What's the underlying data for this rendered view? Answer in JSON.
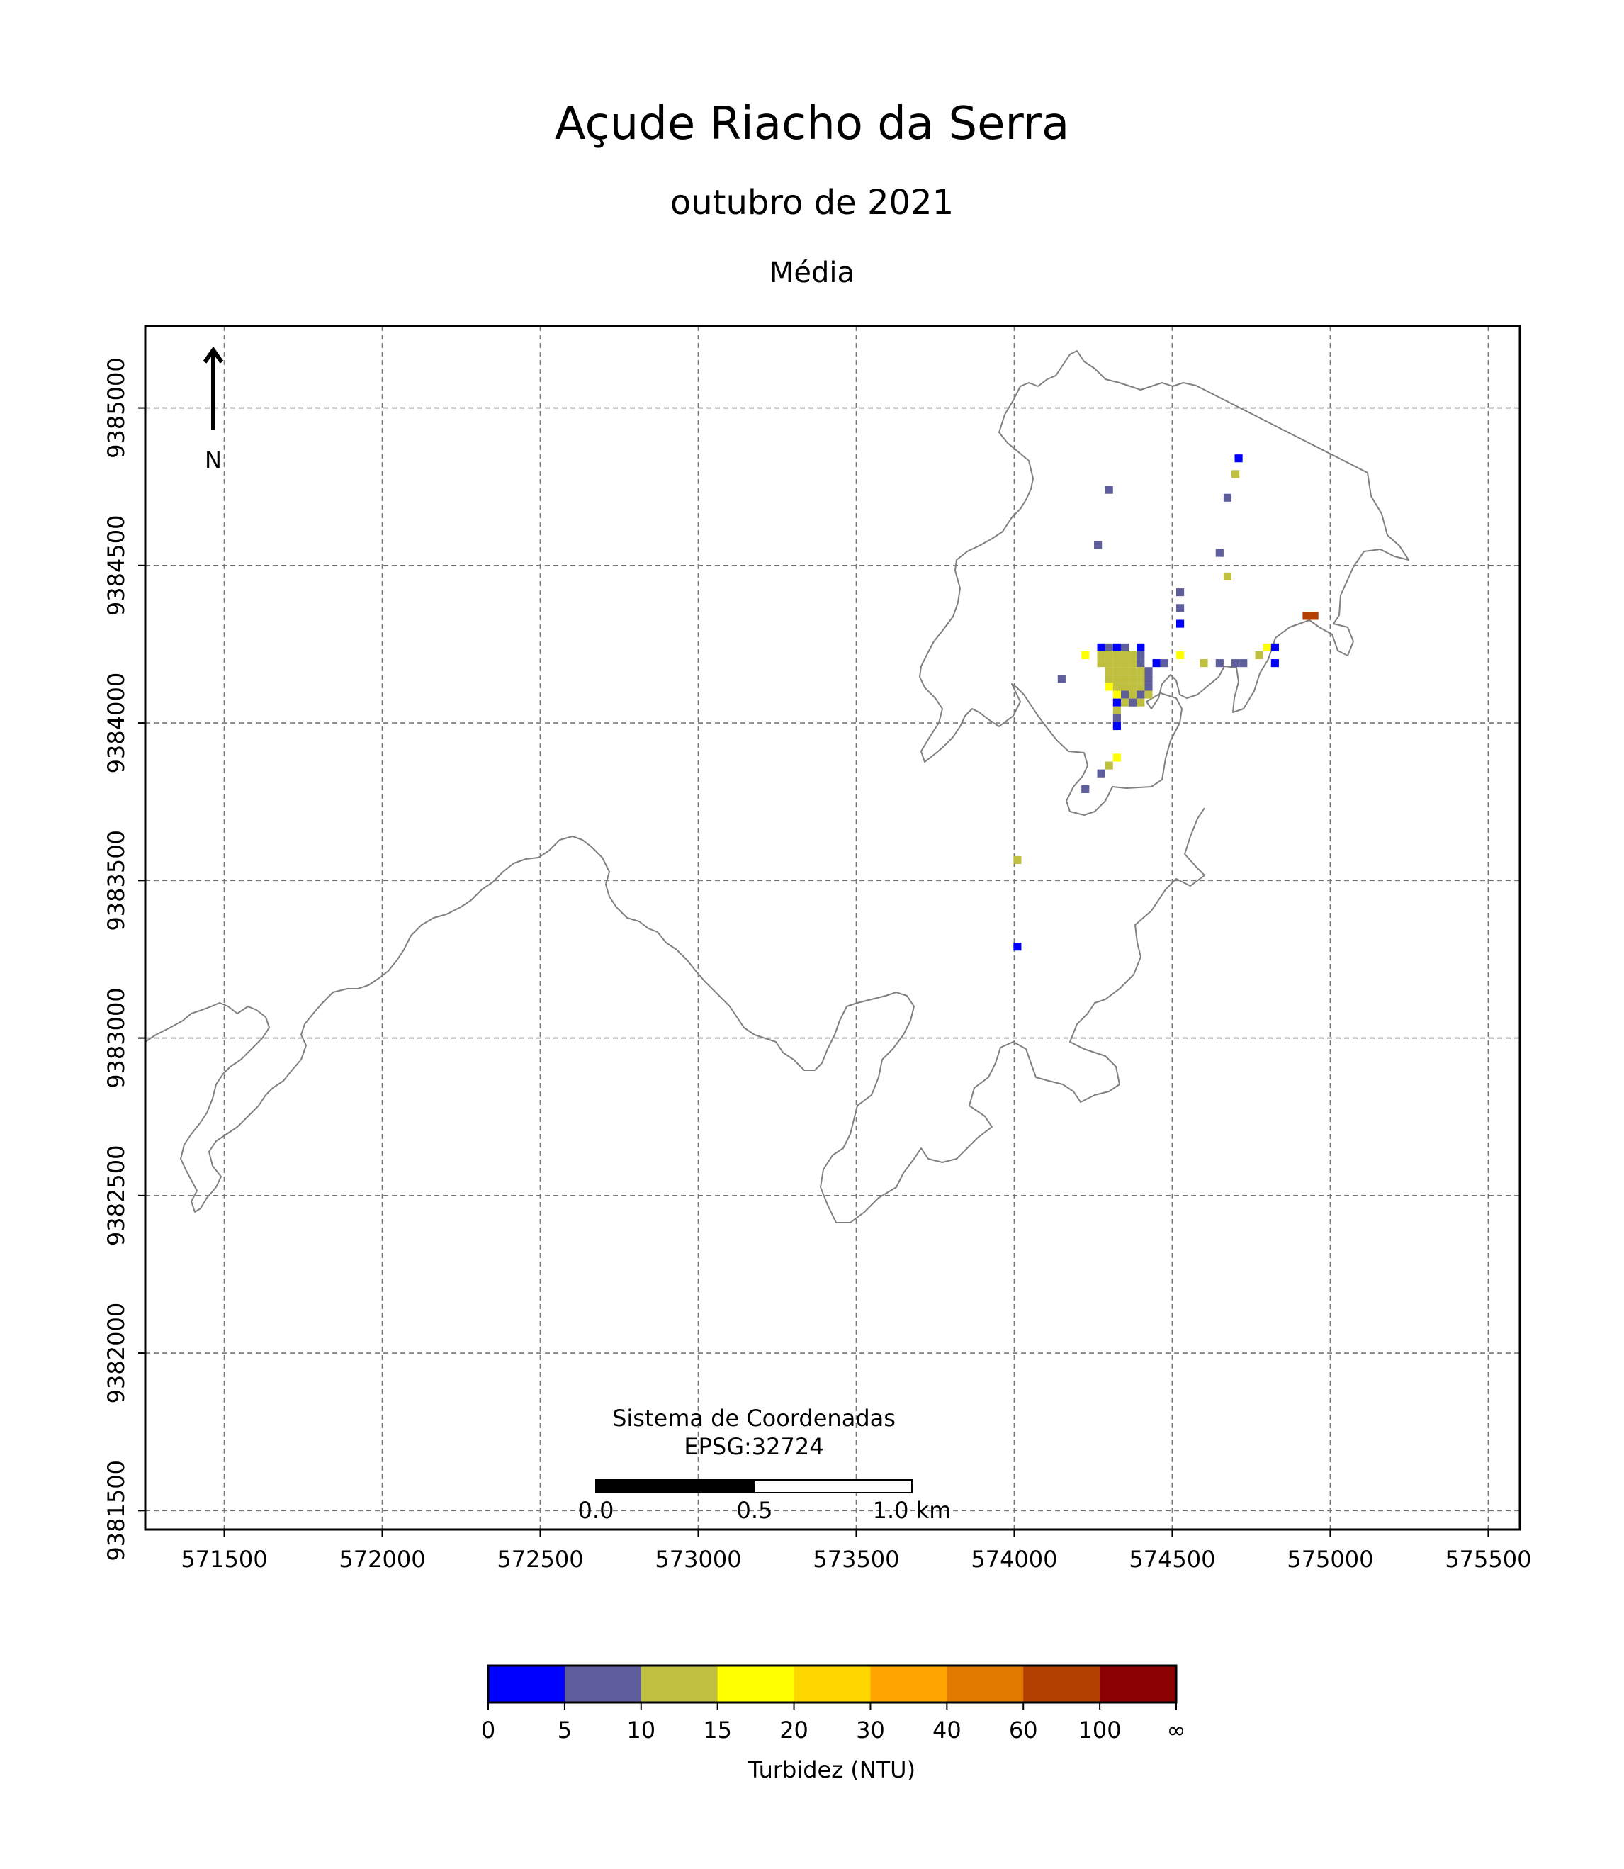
{
  "title": "Açude Riacho da Serra",
  "subtitle": "outubro de 2021",
  "statistic": "Média",
  "north_arrow": {
    "label": "N",
    "icon": "north-arrow-icon"
  },
  "x_ticks": [
    "571500",
    "572000",
    "572500",
    "573000",
    "573500",
    "574000",
    "574500",
    "575000",
    "575500"
  ],
  "y_ticks": [
    "9385000",
    "9384500",
    "9384000",
    "9383500",
    "9383000",
    "9382500",
    "9382000",
    "9381500"
  ],
  "coordinate_system": {
    "line1": "Sistema de Coordenadas",
    "line2": "EPSG:32724"
  },
  "scale_bar": {
    "labels": [
      "0.0",
      "0.5",
      "1.0 km"
    ]
  },
  "colorbar": {
    "label": "Turbidez (NTU)",
    "tick_labels": [
      "0",
      "5",
      "10",
      "15",
      "20",
      "30",
      "40",
      "60",
      "100",
      "∞"
    ],
    "colors": [
      "#0000ff",
      "#5e5e9c",
      "#bfbf40",
      "#ffff00",
      "#ffd700",
      "#ffa500",
      "#e07b00",
      "#b34000",
      "#8b0000"
    ]
  },
  "chart_data": {
    "type": "heatmap",
    "title": "Açude Riacho da Serra",
    "subtitle": "outubro de 2021",
    "statistic": "Média",
    "crs": "EPSG:32724",
    "xlim": [
      571250,
      575600
    ],
    "ylim": [
      9381440,
      9385260
    ],
    "grid": true,
    "value_label": "Turbidez (NTU)",
    "class_bounds": [
      0,
      5,
      10,
      15,
      20,
      30,
      40,
      60,
      100,
      "∞"
    ],
    "pixels": [
      {
        "x": 574275,
        "y": 9384215,
        "v": 12
      },
      {
        "x": 574300,
        "y": 9384215,
        "v": 12
      },
      {
        "x": 574325,
        "y": 9384215,
        "v": 12
      },
      {
        "x": 574350,
        "y": 9384215,
        "v": 11
      },
      {
        "x": 574375,
        "y": 9384215,
        "v": 12
      },
      {
        "x": 574400,
        "y": 9384215,
        "v": 7
      },
      {
        "x": 574275,
        "y": 9384190,
        "v": 12
      },
      {
        "x": 574300,
        "y": 9384190,
        "v": 12
      },
      {
        "x": 574325,
        "y": 9384190,
        "v": 12
      },
      {
        "x": 574350,
        "y": 9384190,
        "v": 12
      },
      {
        "x": 574375,
        "y": 9384190,
        "v": 12
      },
      {
        "x": 574400,
        "y": 9384190,
        "v": 7
      },
      {
        "x": 574300,
        "y": 9384165,
        "v": 12
      },
      {
        "x": 574325,
        "y": 9384165,
        "v": 12
      },
      {
        "x": 574350,
        "y": 9384165,
        "v": 12
      },
      {
        "x": 574375,
        "y": 9384165,
        "v": 12
      },
      {
        "x": 574400,
        "y": 9384165,
        "v": 12
      },
      {
        "x": 574425,
        "y": 9384165,
        "v": 7
      },
      {
        "x": 574300,
        "y": 9384140,
        "v": 12
      },
      {
        "x": 574325,
        "y": 9384140,
        "v": 12
      },
      {
        "x": 574350,
        "y": 9384140,
        "v": 12
      },
      {
        "x": 574375,
        "y": 9384140,
        "v": 12
      },
      {
        "x": 574400,
        "y": 9384140,
        "v": 12
      },
      {
        "x": 574425,
        "y": 9384140,
        "v": 7
      },
      {
        "x": 574300,
        "y": 9384115,
        "v": 17
      },
      {
        "x": 574325,
        "y": 9384115,
        "v": 12
      },
      {
        "x": 574350,
        "y": 9384115,
        "v": 12
      },
      {
        "x": 574375,
        "y": 9384115,
        "v": 12
      },
      {
        "x": 574400,
        "y": 9384115,
        "v": 12
      },
      {
        "x": 574425,
        "y": 9384115,
        "v": 7
      },
      {
        "x": 574325,
        "y": 9384090,
        "v": 17
      },
      {
        "x": 574350,
        "y": 9384090,
        "v": 7
      },
      {
        "x": 574375,
        "y": 9384090,
        "v": 12
      },
      {
        "x": 574400,
        "y": 9384090,
        "v": 7
      },
      {
        "x": 574425,
        "y": 9384090,
        "v": 12
      },
      {
        "x": 574325,
        "y": 9384065,
        "v": 3
      },
      {
        "x": 574350,
        "y": 9384065,
        "v": 12
      },
      {
        "x": 574375,
        "y": 9384065,
        "v": 7
      },
      {
        "x": 574400,
        "y": 9384065,
        "v": 12
      },
      {
        "x": 574325,
        "y": 9384040,
        "v": 12
      },
      {
        "x": 574325,
        "y": 9384015,
        "v": 7
      },
      {
        "x": 574325,
        "y": 9383990,
        "v": 3
      },
      {
        "x": 574325,
        "y": 9383890,
        "v": 17
      },
      {
        "x": 574300,
        "y": 9383865,
        "v": 12
      },
      {
        "x": 574275,
        "y": 9383840,
        "v": 7
      },
      {
        "x": 574225,
        "y": 9383790,
        "v": 7
      },
      {
        "x": 574275,
        "y": 9384240,
        "v": 3
      },
      {
        "x": 574300,
        "y": 9384240,
        "v": 7
      },
      {
        "x": 574325,
        "y": 9384240,
        "v": 3
      },
      {
        "x": 574350,
        "y": 9384240,
        "v": 7
      },
      {
        "x": 574400,
        "y": 9384240,
        "v": 3
      },
      {
        "x": 574225,
        "y": 9384215,
        "v": 17
      },
      {
        "x": 574450,
        "y": 9384190,
        "v": 3
      },
      {
        "x": 574475,
        "y": 9384190,
        "v": 7
      },
      {
        "x": 574525,
        "y": 9384215,
        "v": 17
      },
      {
        "x": 574600,
        "y": 9384190,
        "v": 12
      },
      {
        "x": 574650,
        "y": 9384190,
        "v": 7
      },
      {
        "x": 574700,
        "y": 9384190,
        "v": 7
      },
      {
        "x": 574725,
        "y": 9384190,
        "v": 7
      },
      {
        "x": 574775,
        "y": 9384215,
        "v": 12
      },
      {
        "x": 574800,
        "y": 9384240,
        "v": 17
      },
      {
        "x": 574825,
        "y": 9384240,
        "v": 3
      },
      {
        "x": 574825,
        "y": 9384190,
        "v": 3
      },
      {
        "x": 574925,
        "y": 9384340,
        "v": 80
      },
      {
        "x": 574950,
        "y": 9384340,
        "v": 80
      },
      {
        "x": 574525,
        "y": 9384415,
        "v": 7
      },
      {
        "x": 574525,
        "y": 9384365,
        "v": 7
      },
      {
        "x": 574525,
        "y": 9384315,
        "v": 3
      },
      {
        "x": 574650,
        "y": 9384540,
        "v": 7
      },
      {
        "x": 574675,
        "y": 9384465,
        "v": 12
      },
      {
        "x": 574675,
        "y": 9384715,
        "v": 7
      },
      {
        "x": 574700,
        "y": 9384790,
        "v": 12
      },
      {
        "x": 574710,
        "y": 9384840,
        "v": 3
      },
      {
        "x": 574300,
        "y": 9384740,
        "v": 7
      },
      {
        "x": 574265,
        "y": 9384565,
        "v": 7
      },
      {
        "x": 574150,
        "y": 9384140,
        "v": 7
      },
      {
        "x": 574010,
        "y": 9383565,
        "v": 12
      },
      {
        "x": 574010,
        "y": 9383290,
        "v": 3
      }
    ]
  }
}
